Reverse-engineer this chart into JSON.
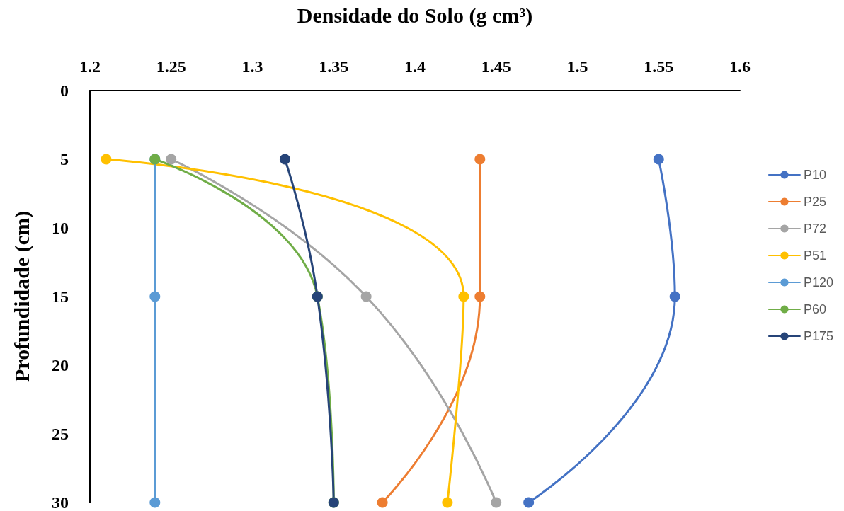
{
  "chart_data": {
    "type": "line",
    "xlabel": "Densidade do Solo (g cm³)",
    "ylabel": "Profundidade (cm)",
    "xlim": [
      1.2,
      1.6
    ],
    "xticks": [
      1.2,
      1.25,
      1.3,
      1.35,
      1.4,
      1.45,
      1.5,
      1.55,
      1.6
    ],
    "ylim": [
      30,
      0
    ],
    "yticks": [
      0,
      5,
      10,
      15,
      20,
      25,
      30
    ],
    "grid": false,
    "legend": "right",
    "marker": "circle",
    "line_style": "solid",
    "series": [
      {
        "name": "P10",
        "color": "#4472c4",
        "x": [
          1.55,
          1.56,
          1.47
        ],
        "values": [
          5,
          15,
          30
        ]
      },
      {
        "name": "P25",
        "color": "#ed7d31",
        "x": [
          1.44,
          1.44,
          1.38
        ],
        "values": [
          5,
          15,
          30
        ]
      },
      {
        "name": "P72",
        "color": "#a5a5a5",
        "x": [
          1.25,
          1.37,
          1.45
        ],
        "values": [
          5,
          15,
          30
        ]
      },
      {
        "name": "P51",
        "color": "#ffc000",
        "x": [
          1.21,
          1.43,
          1.42
        ],
        "values": [
          5,
          15,
          30
        ]
      },
      {
        "name": "P120",
        "color": "#5b9bd5",
        "x": [
          1.24,
          1.24,
          1.24
        ],
        "values": [
          5,
          15,
          30
        ]
      },
      {
        "name": "P60",
        "color": "#70ad47",
        "x": [
          1.24,
          1.34,
          1.35
        ],
        "values": [
          5,
          15,
          30
        ]
      },
      {
        "name": "P175",
        "color": "#264478",
        "x": [
          1.32,
          1.34,
          1.35
        ],
        "values": [
          5,
          15,
          30
        ]
      }
    ]
  }
}
